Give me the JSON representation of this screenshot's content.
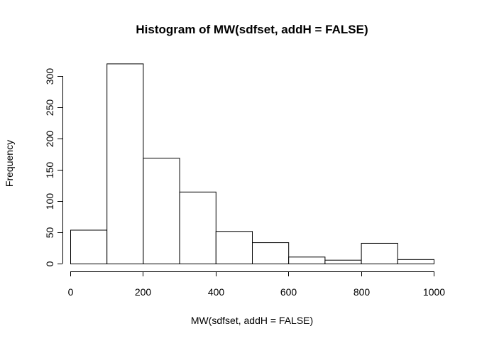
{
  "chart_data": {
    "type": "bar",
    "title": "Histogram of MW(sdfset, addH = FALSE)",
    "xlabel": "MW(sdfset, addH = FALSE)",
    "ylabel": "Frequency",
    "bins": [
      {
        "from": 0,
        "to": 100,
        "value": 54
      },
      {
        "from": 100,
        "to": 200,
        "value": 320
      },
      {
        "from": 200,
        "to": 300,
        "value": 169
      },
      {
        "from": 300,
        "to": 400,
        "value": 115
      },
      {
        "from": 400,
        "to": 500,
        "value": 52
      },
      {
        "from": 500,
        "to": 600,
        "value": 34
      },
      {
        "from": 600,
        "to": 700,
        "value": 11
      },
      {
        "from": 700,
        "to": 800,
        "value": 6
      },
      {
        "from": 800,
        "to": 900,
        "value": 33
      },
      {
        "from": 900,
        "to": 1000,
        "value": 7
      }
    ],
    "xlim": [
      0,
      1000
    ],
    "ylim": [
      0,
      300
    ],
    "xticks": [
      0,
      200,
      400,
      600,
      800,
      1000
    ],
    "yticks": [
      0,
      50,
      100,
      150,
      200,
      250,
      300
    ],
    "grid": false,
    "colors": {
      "bar_fill": "#ffffff",
      "bar_stroke": "#000000"
    }
  }
}
